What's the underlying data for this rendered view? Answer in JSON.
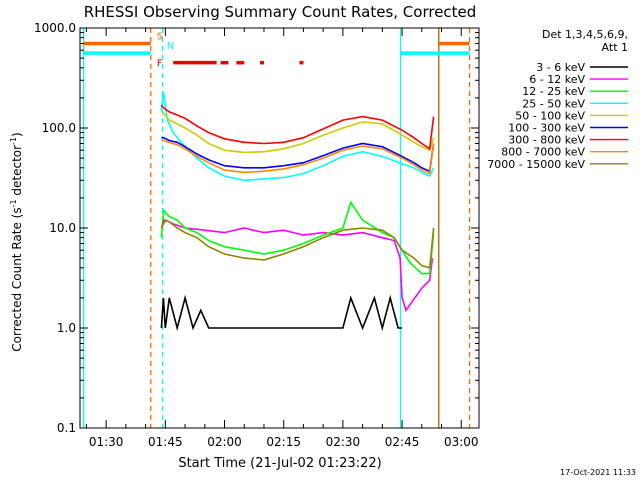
{
  "chart_data": {
    "type": "line",
    "title": "RHESSI Observing Summary Count Rates, Corrected",
    "xlabel": "Start Time (21-Jul-02 01:23:22)",
    "ylabel_main": "Corrected Count Rate (s",
    "ylabel_sup1": "-1",
    "ylabel_mid": " detector",
    "ylabel_sup2": "-1",
    "ylabel_end": ")",
    "yscale": "log",
    "ylim": [
      0.1,
      1000
    ],
    "xlim_minutes": [
      83.37,
      184.5
    ],
    "y_ticks": [
      {
        "value": 0.1,
        "label": "0.1"
      },
      {
        "value": 1,
        "label": "1.0"
      },
      {
        "value": 10,
        "label": "10.0"
      },
      {
        "value": 100,
        "label": "100.0"
      },
      {
        "value": 1000,
        "label": "1000.0"
      }
    ],
    "x_ticks": [
      {
        "minutes": 90,
        "label": "01:30"
      },
      {
        "minutes": 105,
        "label": "01:45"
      },
      {
        "minutes": 120,
        "label": "02:00"
      },
      {
        "minutes": 135,
        "label": "02:15"
      },
      {
        "minutes": 150,
        "label": "02:30"
      },
      {
        "minutes": 165,
        "label": "02:45"
      },
      {
        "minutes": 180,
        "label": "03:00"
      }
    ],
    "legend_header": [
      "Det 1,3,4,5,6,9,",
      "Att 1"
    ],
    "series": [
      {
        "name": "3 - 6 keV",
        "color": "#000000",
        "x": [
          104,
          104.5,
          105,
          106,
          108,
          110,
          112,
          114,
          116,
          120,
          125,
          130,
          135,
          140,
          145,
          150,
          152,
          155,
          158,
          160,
          162,
          164,
          165
        ],
        "y": [
          1,
          2,
          1,
          2,
          1,
          2,
          1,
          1.5,
          1,
          1,
          1,
          1,
          1,
          1,
          1,
          1,
          2,
          1,
          2,
          1,
          2,
          1,
          1
        ]
      },
      {
        "name": "6 - 12 keV",
        "color": "#ff00ff",
        "x": [
          104,
          105,
          107,
          110,
          115,
          120,
          125,
          130,
          135,
          140,
          145,
          150,
          155,
          160,
          163,
          164.5,
          165,
          166,
          170,
          172,
          172.7
        ],
        "y": [
          10,
          12,
          11,
          10,
          9.5,
          9,
          10,
          9,
          9.5,
          8.5,
          9,
          8.5,
          9,
          8,
          7.5,
          5,
          2,
          1.5,
          2.5,
          3,
          5
        ]
      },
      {
        "name": "12 - 25 keV",
        "color": "#00ff00",
        "x": [
          104,
          104.6,
          106,
          108,
          110,
          113,
          116,
          120,
          125,
          130,
          135,
          140,
          145,
          150,
          152,
          155,
          160,
          163,
          165,
          167,
          170,
          172,
          173
        ],
        "y": [
          8,
          15,
          13,
          12,
          10,
          9,
          7.5,
          6.5,
          6,
          5.5,
          6,
          7,
          8.5,
          10,
          18,
          12,
          9,
          8,
          6,
          4.5,
          3.5,
          3.5,
          9
        ]
      },
      {
        "name": "25 - 50 keV",
        "color": "#00ffff",
        "x": [
          104,
          104.5,
          105.5,
          107,
          110,
          113,
          116,
          120,
          125,
          130,
          135,
          140,
          145,
          150,
          155,
          160,
          163,
          165,
          168,
          170,
          172,
          173
        ],
        "y": [
          150,
          230,
          120,
          90,
          65,
          50,
          40,
          33,
          30,
          31,
          32,
          35,
          42,
          52,
          58,
          52,
          47,
          44,
          40,
          36,
          33,
          40
        ]
      },
      {
        "name": "50 - 100 keV",
        "color": "#cccc00",
        "x": [
          104,
          104.5,
          106,
          108,
          110,
          113,
          116,
          120,
          125,
          130,
          135,
          140,
          145,
          150,
          155,
          160,
          165,
          168,
          170,
          172,
          173
        ],
        "y": [
          150,
          140,
          120,
          110,
          100,
          85,
          70,
          60,
          57,
          58,
          62,
          70,
          85,
          100,
          115,
          110,
          85,
          72,
          65,
          60,
          80
        ]
      },
      {
        "name": "100 - 300 keV",
        "color": "#0000ff",
        "x": [
          104,
          104.5,
          106,
          108,
          110,
          113,
          116,
          120,
          125,
          130,
          135,
          140,
          145,
          150,
          155,
          160,
          165,
          168,
          170,
          172,
          173
        ],
        "y": [
          80,
          80,
          75,
          72,
          65,
          55,
          48,
          42,
          40,
          40,
          42,
          45,
          53,
          63,
          70,
          65,
          52,
          45,
          40,
          37,
          70
        ]
      },
      {
        "name": "300 - 800 keV",
        "color": "#ff0000",
        "x": [
          104,
          104.5,
          106,
          108,
          110,
          113,
          116,
          120,
          125,
          130,
          135,
          140,
          145,
          150,
          155,
          160,
          165,
          168,
          170,
          172,
          173
        ],
        "y": [
          170,
          160,
          145,
          135,
          125,
          105,
          90,
          78,
          72,
          70,
          72,
          80,
          98,
          120,
          130,
          120,
          95,
          80,
          70,
          62,
          130
        ]
      },
      {
        "name": "800 - 7000 keV",
        "color": "#ff8800",
        "x": [
          104,
          104.5,
          106,
          108,
          110,
          113,
          116,
          120,
          125,
          130,
          135,
          140,
          145,
          150,
          155,
          160,
          165,
          168,
          170,
          172,
          173
        ],
        "y": [
          75,
          75,
          72,
          68,
          62,
          52,
          45,
          38,
          36,
          37,
          39,
          43,
          50,
          60,
          66,
          62,
          50,
          43,
          38,
          35,
          70
        ]
      },
      {
        "name": "7000 - 15000 keV",
        "color": "#888800",
        "x": [
          104,
          104.6,
          106,
          108,
          110,
          113,
          116,
          120,
          125,
          130,
          135,
          140,
          145,
          150,
          155,
          160,
          163,
          165,
          168,
          170,
          172,
          173
        ],
        "y": [
          10,
          12,
          11.5,
          10,
          9,
          8,
          6.5,
          5.5,
          5,
          4.8,
          5.5,
          6.5,
          8,
          9.5,
          10,
          9.5,
          8,
          6,
          5,
          4.2,
          4,
          10
        ]
      }
    ],
    "vertical_lines": [
      {
        "minutes": 84.3,
        "color": "#00ffff",
        "style": "solid"
      },
      {
        "minutes": 101.3,
        "color": "#ff6600",
        "style": "dashed"
      },
      {
        "minutes": 104.3,
        "color": "#00ffff",
        "style": "dashed"
      },
      {
        "minutes": 164.6,
        "color": "#00ffff",
        "style": "solid"
      },
      {
        "minutes": 174.3,
        "color": "#aa6600",
        "style": "solid"
      },
      {
        "minutes": 182.1,
        "color": "#ff6600",
        "style": "dashed"
      }
    ],
    "flag_bars": [
      {
        "label": "S",
        "color": "#ff6600",
        "segments": [
          [
            84.3,
            101.3
          ],
          [
            174.5,
            182.1
          ]
        ],
        "level": 700
      },
      {
        "label": "N",
        "color": "#00ffff",
        "segments": [
          [
            84.3,
            101.3
          ],
          [
            164.6,
            182.1
          ]
        ],
        "level": 560
      },
      {
        "label": "F",
        "color": "#ee0000",
        "segments": [
          [
            107,
            118
          ],
          [
            119,
            121
          ],
          [
            123,
            125
          ],
          [
            129,
            130
          ],
          [
            139,
            140
          ]
        ],
        "level": 450
      }
    ]
  },
  "timestamp": "17-Oct-2021 11:33"
}
